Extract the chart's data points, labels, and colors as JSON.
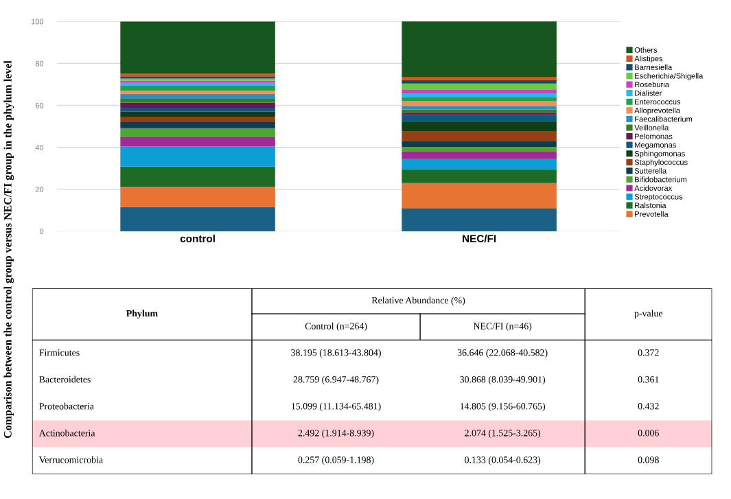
{
  "chart_data": [
    {
      "type": "bar",
      "stacked": true,
      "categories": [
        "control",
        "NEC/FI"
      ],
      "ylabel": "Comparison between the control group versus NEC/FI group in the phylum level",
      "ylim": [
        0,
        100
      ],
      "yticks": [
        0,
        20,
        40,
        60,
        80,
        100
      ],
      "grid": "y",
      "legend": "right",
      "series": [
        {
          "color": "#1b6185",
          "values": [
            11.5,
            11.0
          ]
        },
        {
          "name": "Prevotella",
          "color": "#e87433",
          "values": [
            9.7,
            12.0
          ]
        },
        {
          "name": "Ralstonia",
          "color": "#1e6b26",
          "values": [
            9.6,
            6.5
          ]
        },
        {
          "name": "Streptococcus",
          "color": "#0e9ed6",
          "values": [
            9.6,
            4.9
          ]
        },
        {
          "name": "Acidovorax",
          "color": "#a02b92",
          "values": [
            4.8,
            3.8
          ]
        },
        {
          "name": "Bifidobacterium",
          "color": "#4ea72e",
          "values": [
            3.9,
            2.0
          ]
        },
        {
          "name": "Sutterella",
          "color": "#0f3a4f",
          "values": [
            2.9,
            2.9
          ]
        },
        {
          "name": "Staphylococcus",
          "color": "#953f12",
          "values": [
            2.6,
            4.4
          ]
        },
        {
          "name": "Sphingomonas",
          "color": "#103f17",
          "values": [
            2.4,
            4.9
          ]
        },
        {
          "name": "Megamonas",
          "color": "#0f5a7c",
          "values": [
            1.9,
            3.0
          ]
        },
        {
          "name": "Pelomonas",
          "color": "#5f1a57",
          "values": [
            2.4,
            1.1
          ]
        },
        {
          "name": "Veillonella",
          "color": "#3a7b25",
          "values": [
            1.8,
            1.5
          ]
        },
        {
          "name": "Faecalibacterium",
          "color": "#2a90c8",
          "values": [
            2.4,
            1.8
          ]
        },
        {
          "name": "Alloprevotella",
          "color": "#f08f5c",
          "values": [
            1.5,
            2.2
          ]
        },
        {
          "name": "Enterococcus",
          "color": "#22a24a",
          "values": [
            2.3,
            1.8
          ]
        },
        {
          "name": "Dialister",
          "color": "#33b6ef",
          "values": [
            1.4,
            1.9
          ]
        },
        {
          "name": "Roseburia",
          "color": "#d03fc2",
          "values": [
            1.1,
            1.9
          ]
        },
        {
          "name": "Escherichia/Shigella",
          "color": "#66cc44",
          "values": [
            1.0,
            2.8
          ]
        },
        {
          "name": "Barnesiella",
          "color": "#114e6d",
          "values": [
            0.8,
            1.6
          ]
        },
        {
          "name": "Alistipes",
          "color": "#d0561c",
          "values": [
            1.5,
            1.6
          ]
        },
        {
          "name": "Others",
          "color": "#17561f",
          "values": [
            24.9,
            26.8
          ]
        }
      ]
    },
    {
      "type": "other",
      "colors": [
        "#ffffff",
        "#ffffff",
        "#ffffff",
        "#ffd0d6",
        "#ffffff"
      ],
      "annotations": [
        "Phylum",
        "Relative Abundance (%)",
        "p-value",
        "Control (n=264)",
        "NEC/FI (n=46)",
        "Firmicutes",
        "38.195 (18.613-43.804)",
        "36.646 (22.068-40.582)",
        "0.372",
        "Bacteroidetes",
        "28.759 (6.947-48.767)",
        "30.868 (8.039-49.901)",
        "0.361",
        "Proteobacteria",
        "15.099 (11.134-65.481)",
        "14.805 (9.156-60.765)",
        "0.432",
        "Actinobacteria",
        "2.492 (1.914-8.939)",
        "2.074 (1.525-3.265)",
        "0.006",
        "Verrucomicrobia",
        "0.257 (0.059-1.198)",
        "0.133 (0.054-0.623)",
        "0.098"
      ]
    }
  ]
}
